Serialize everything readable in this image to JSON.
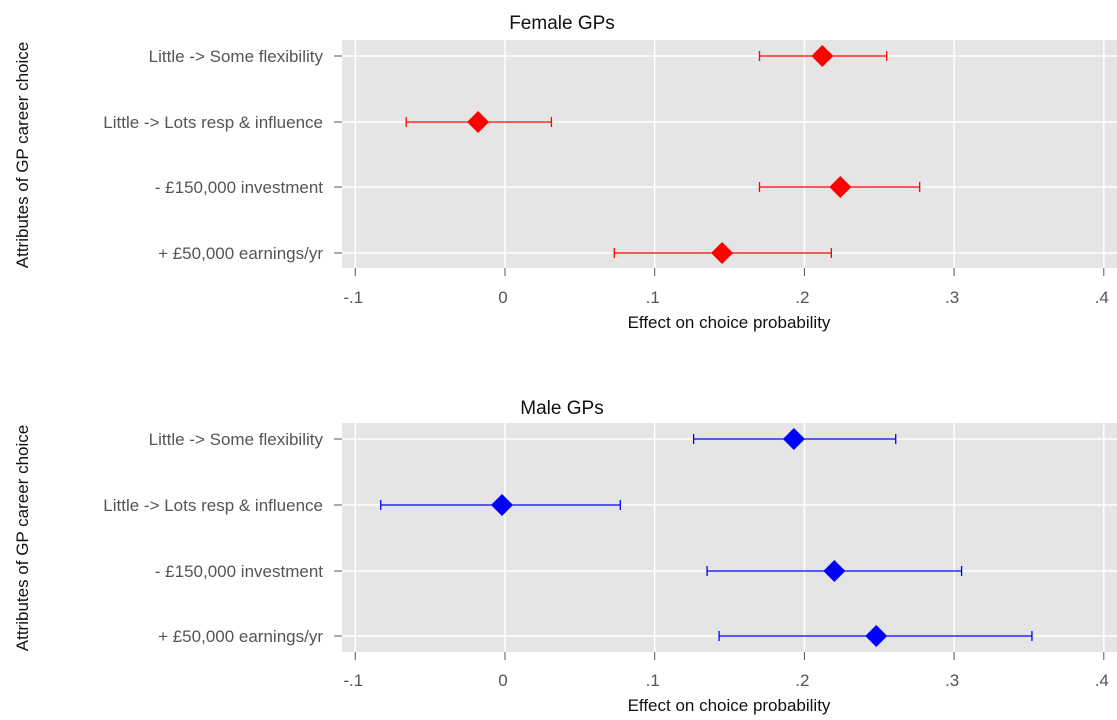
{
  "chart_data": [
    {
      "type": "scatter",
      "title": "Female GPs",
      "xlabel": "Effect on choice probability",
      "ylabel": "Attributes of GP career choice",
      "xlim": [
        -0.1,
        0.4
      ],
      "xticks": [
        -0.1,
        0,
        0.1,
        0.2,
        0.3,
        0.4
      ],
      "xtick_labels": [
        "-.1",
        "0",
        ".1",
        ".2",
        ".3",
        ".4"
      ],
      "categories": [
        "Little -> Some flexibility",
        "Little -> Lots resp & influence",
        "- £150,000 investment",
        "+ £50,000 earnings/yr"
      ],
      "estimates": [
        0.212,
        -0.018,
        0.224,
        0.145
      ],
      "ci_low": [
        0.17,
        -0.066,
        0.17,
        0.073
      ],
      "ci_high": [
        0.255,
        0.031,
        0.277,
        0.218
      ],
      "color": "#ff0000",
      "grid": true
    },
    {
      "type": "scatter",
      "title": "Male GPs",
      "xlabel": "Effect on choice probability",
      "ylabel": "Attributes of GP career choice",
      "xlim": [
        -0.1,
        0.4
      ],
      "xticks": [
        -0.1,
        0,
        0.1,
        0.2,
        0.3,
        0.4
      ],
      "xtick_labels": [
        "-.1",
        "0",
        ".1",
        ".2",
        ".3",
        ".4"
      ],
      "categories": [
        "Little -> Some flexibility",
        "Little -> Lots resp & influence",
        "- £150,000 investment",
        "+ £50,000 earnings/yr"
      ],
      "estimates": [
        0.193,
        -0.002,
        0.22,
        0.248
      ],
      "ci_low": [
        0.126,
        -0.083,
        0.135,
        0.143
      ],
      "ci_high": [
        0.261,
        0.077,
        0.305,
        0.352
      ],
      "color": "#0000ff",
      "grid": true
    }
  ]
}
